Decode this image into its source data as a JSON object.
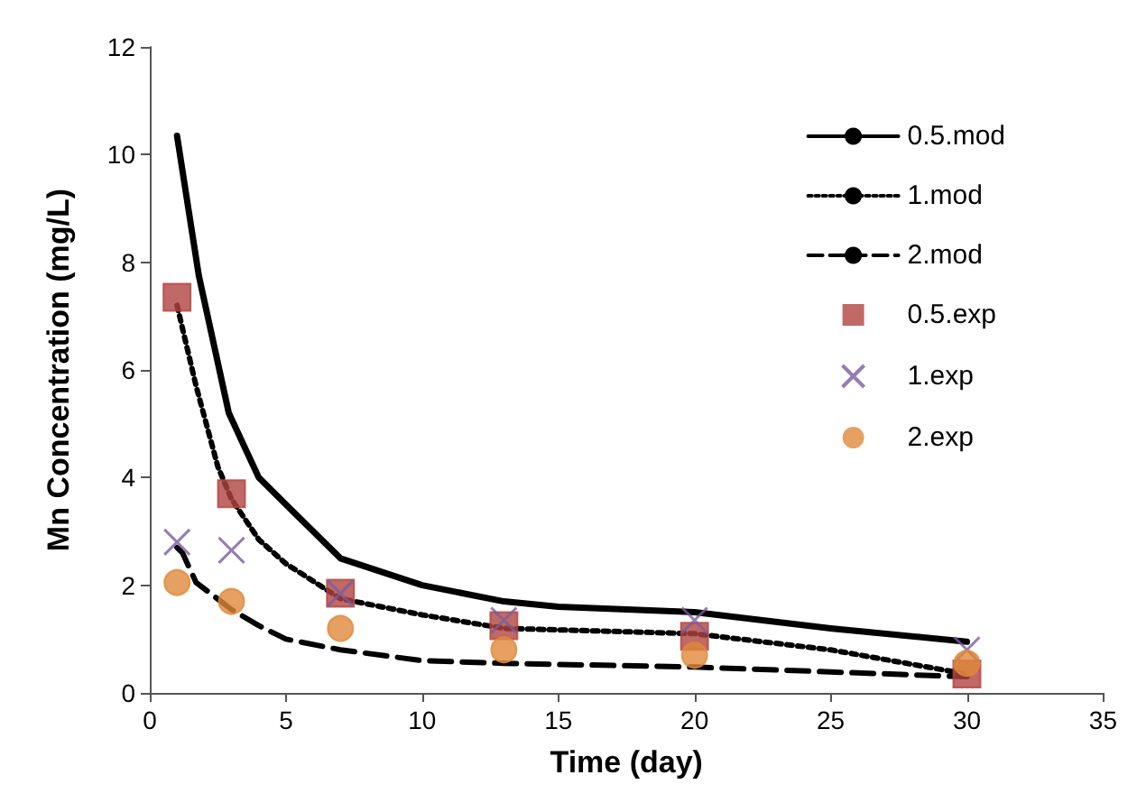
{
  "chart_data": {
    "type": "line",
    "xlabel": "Time (day)",
    "ylabel": "Mn Concentration (mg/L)",
    "xlim": [
      0,
      35
    ],
    "xticks": [
      0,
      5,
      10,
      15,
      20,
      25,
      30,
      35
    ],
    "ylim": [
      0,
      12
    ],
    "yticks": [
      0,
      2,
      4,
      6,
      8,
      10,
      12
    ],
    "grid": false,
    "legend": "top right",
    "series": [
      {
        "name": "0.5.mod",
        "color": "#000000",
        "line_style": "solid",
        "marker": "none",
        "x": [
          1,
          1.8,
          2.9,
          4,
          5,
          7,
          10,
          13,
          15,
          20,
          25,
          30
        ],
        "values": [
          10.35,
          7.75,
          5.2,
          4.0,
          3.5,
          2.5,
          2.0,
          1.7,
          1.6,
          1.5,
          1.2,
          0.95
        ]
      },
      {
        "name": "1.mod",
        "color": "#000000",
        "line_style": "dotted",
        "marker": "none",
        "x": [
          1,
          1.7,
          2.5,
          3,
          4,
          5,
          7,
          10,
          13,
          20,
          25,
          30
        ],
        "values": [
          7.2,
          5.7,
          4.2,
          3.6,
          2.85,
          2.4,
          1.75,
          1.45,
          1.2,
          1.1,
          0.8,
          0.35
        ]
      },
      {
        "name": "2.mod",
        "color": "#000000",
        "line_style": "dashed",
        "marker": "none",
        "x": [
          1,
          1.2,
          1.7,
          3,
          4,
          5,
          7,
          10,
          13,
          20,
          30
        ],
        "values": [
          2.7,
          2.6,
          2.05,
          1.55,
          1.25,
          1.0,
          0.8,
          0.6,
          0.55,
          0.48,
          0.3
        ]
      },
      {
        "name": "0.5.exp",
        "type": "scatter",
        "color": "#b04440",
        "marker": "square",
        "x": [
          1,
          3,
          7,
          13,
          20,
          30
        ],
        "values": [
          7.35,
          3.7,
          1.85,
          1.25,
          1.05,
          0.35
        ]
      },
      {
        "name": "1.exp",
        "type": "scatter",
        "color": "#7b5c9e",
        "marker": "cross",
        "x": [
          1,
          3,
          7,
          13,
          20,
          30
        ],
        "values": [
          2.8,
          2.65,
          1.85,
          1.35,
          1.35,
          0.8
        ]
      },
      {
        "name": "2.exp",
        "type": "scatter",
        "color": "#e0883a",
        "marker": "circle",
        "x": [
          1,
          3,
          7,
          13,
          20,
          30
        ],
        "values": [
          2.05,
          1.7,
          1.2,
          0.8,
          0.7,
          0.55
        ]
      }
    ]
  }
}
